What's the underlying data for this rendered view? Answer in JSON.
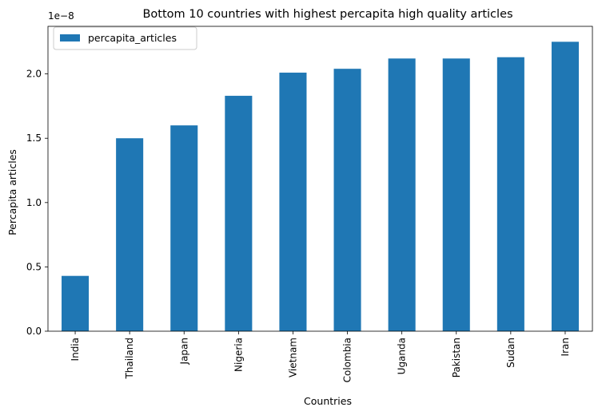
{
  "chart_data": {
    "type": "bar",
    "title": "Bottom 10 countries with highest percapita high quality articles",
    "xlabel": "Countries",
    "ylabel": "Percapita articles",
    "y_offset_text": "1e−8",
    "y_scale_exponent": -8,
    "categories": [
      "India",
      "Thailand",
      "Japan",
      "Nigeria",
      "Vietnam",
      "Colombia",
      "Uganda",
      "Pakistan",
      "Sudan",
      "Iran"
    ],
    "series": [
      {
        "name": "percapita_articles",
        "color": "#1f77b4",
        "values": [
          4.3e-09,
          1.5e-08,
          1.6e-08,
          1.83e-08,
          2.01e-08,
          2.04e-08,
          2.12e-08,
          2.12e-08,
          2.13e-08,
          2.25e-08
        ]
      }
    ],
    "y_ticks": [
      "0.0",
      "0.5",
      "1.0",
      "1.5",
      "2.0"
    ],
    "ylim": [
      0,
      2.37e-08
    ],
    "grid": false,
    "legend_position": "top-left"
  }
}
